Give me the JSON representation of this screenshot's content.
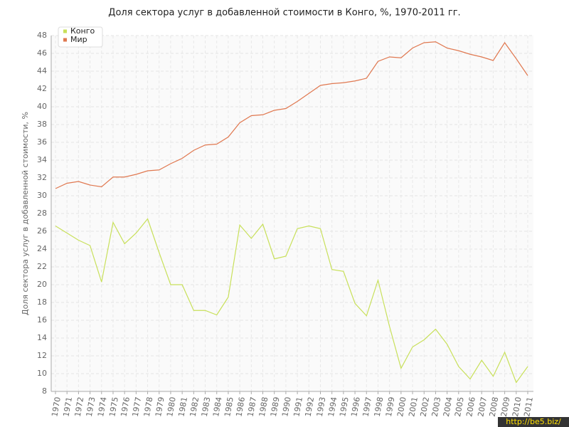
{
  "chart_data": {
    "type": "line",
    "title": "Доля сектора услуг в добавленной стоимости в Конго, %, 1970-2011 гг.",
    "y_label": "Доля сектора услуг в добавленной стоимости, %",
    "watermark": "http://be5.biz/",
    "categories": [
      "1970",
      "1971",
      "1972",
      "1973",
      "1974",
      "1975",
      "1976",
      "1977",
      "1978",
      "1979",
      "1980",
      "1981",
      "1982",
      "1983",
      "1984",
      "1985",
      "1986",
      "1987",
      "1988",
      "1989",
      "1990",
      "1991",
      "1992",
      "1993",
      "1994",
      "1995",
      "1996",
      "1997",
      "1998",
      "1999",
      "2000",
      "2001",
      "2002",
      "2003",
      "2004",
      "2005",
      "2006",
      "2007",
      "2008",
      "2009",
      "2010",
      "2011"
    ],
    "series": [
      {
        "name": "Конго",
        "color": "#c8e05a",
        "values": [
          26.6,
          25.8,
          25.0,
          24.4,
          20.3,
          27.0,
          24.6,
          25.8,
          27.4,
          23.6,
          20.0,
          20.0,
          17.1,
          17.1,
          16.6,
          18.6,
          26.7,
          25.2,
          26.8,
          22.9,
          23.2,
          26.3,
          26.6,
          26.3,
          21.7,
          21.5,
          17.9,
          16.5,
          20.5,
          15.3,
          10.6,
          13.0,
          13.8,
          15.0,
          13.3,
          10.8,
          9.4,
          11.5,
          9.7,
          12.4,
          9.0,
          10.8
        ]
      },
      {
        "name": "Мир",
        "color": "#e07850",
        "values": [
          30.8,
          31.4,
          31.6,
          31.2,
          31.0,
          32.1,
          32.1,
          32.4,
          32.8,
          32.9,
          33.6,
          34.2,
          35.1,
          35.7,
          35.8,
          36.6,
          38.2,
          39.0,
          39.1,
          39.6,
          39.8,
          40.6,
          41.5,
          42.4,
          42.6,
          42.7,
          42.9,
          43.2,
          45.1,
          45.6,
          45.5,
          46.6,
          47.2,
          47.3,
          46.6,
          46.3,
          45.9,
          45.6,
          45.2,
          47.2,
          45.4,
          43.5
        ]
      }
    ],
    "ylim": [
      8,
      48
    ],
    "yticks": [
      8,
      10,
      12,
      14,
      16,
      18,
      20,
      22,
      24,
      26,
      28,
      30,
      32,
      34,
      36,
      38,
      40,
      42,
      44,
      46,
      48
    ],
    "grid": true,
    "legend": "top-left"
  }
}
